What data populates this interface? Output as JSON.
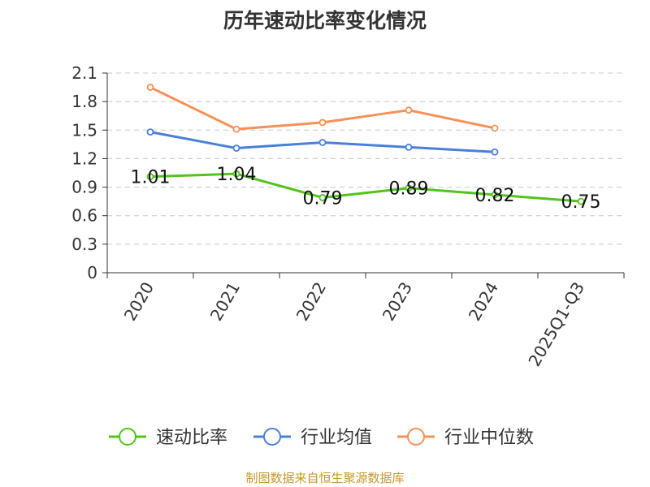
{
  "chart_data": {
    "type": "line",
    "title": "历年速动比率变化情况",
    "categories": [
      "2020",
      "2021",
      "2022",
      "2023",
      "2024",
      "2025Q1-Q3"
    ],
    "yticks": [
      "0",
      "0.3",
      "0.6",
      "0.9",
      "1.2",
      "1.5",
      "1.8",
      "2.1"
    ],
    "ylim": [
      0,
      2.1
    ],
    "grid": true,
    "legend_position": "bottom",
    "series": [
      {
        "name": "速动比率",
        "color": "#52c41a",
        "values": [
          1.01,
          1.04,
          0.79,
          0.89,
          0.82,
          0.75
        ],
        "labels": [
          "1.01",
          "1.04",
          "0.79",
          "0.89",
          "0.82",
          "0.75"
        ]
      },
      {
        "name": "行业均值",
        "color": "#4a7fdb",
        "values": [
          1.48,
          1.31,
          1.37,
          1.32,
          1.27,
          null
        ]
      },
      {
        "name": "行业中位数",
        "color": "#f79058",
        "values": [
          1.95,
          1.51,
          1.58,
          1.71,
          1.52,
          null
        ]
      }
    ],
    "source": "制图数据来自恒生聚源数据库"
  }
}
